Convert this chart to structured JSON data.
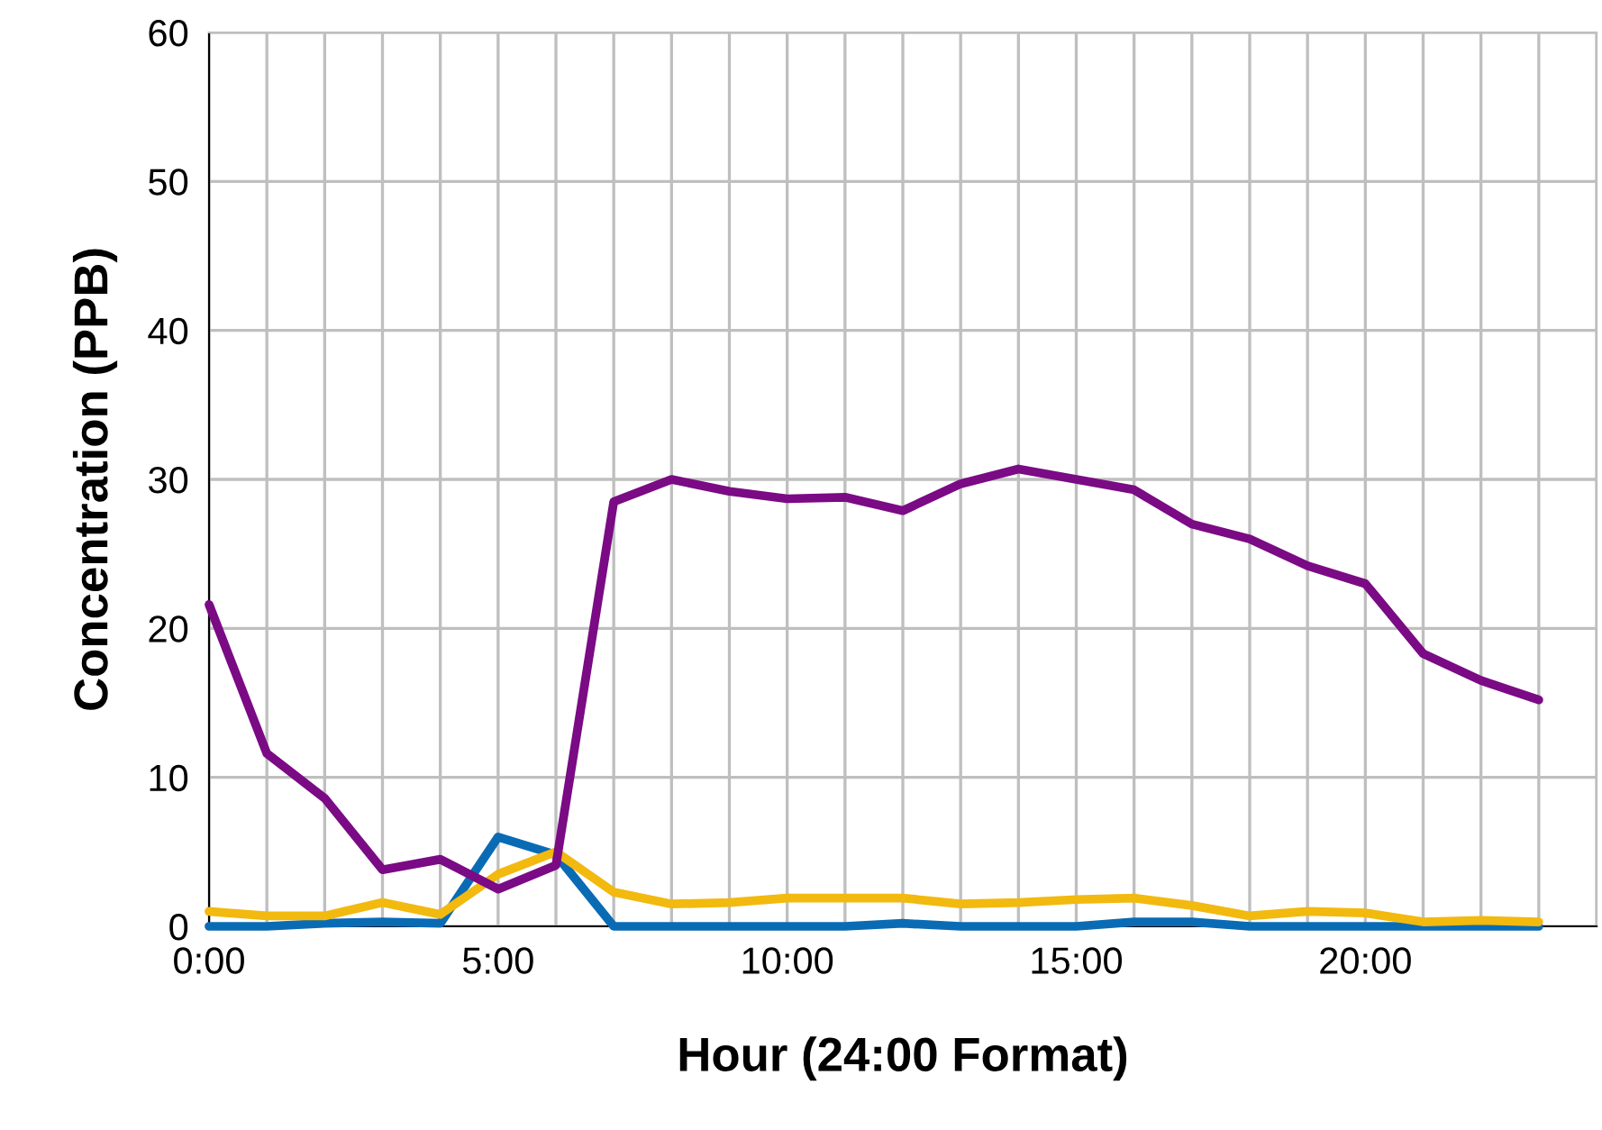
{
  "chart_data": {
    "type": "line",
    "xlabel": "Hour (24:00 Format)",
    "ylabel": "Concentration (PPB)",
    "x": [
      0,
      1,
      2,
      3,
      4,
      5,
      6,
      7,
      8,
      9,
      10,
      11,
      12,
      13,
      14,
      15,
      16,
      17,
      18,
      19,
      20,
      21,
      22,
      23
    ],
    "series": [
      {
        "color": "#0a6bb5",
        "values": [
          0,
          0,
          0.2,
          0.3,
          0.2,
          6,
          4.8,
          0,
          0,
          0,
          0,
          0,
          0.2,
          0,
          0,
          0,
          0.3,
          0.3,
          0,
          0,
          0,
          0,
          0,
          0
        ]
      },
      {
        "color": "#f2b90f",
        "values": [
          1,
          0.7,
          0.7,
          1.6,
          0.8,
          3.5,
          5,
          2.3,
          1.5,
          1.6,
          1.9,
          1.9,
          1.9,
          1.5,
          1.6,
          1.8,
          1.9,
          1.4,
          0.7,
          1,
          0.9,
          0.3,
          0.4,
          0.3
        ]
      },
      {
        "color": "#7b0a85",
        "values": [
          21.6,
          11.6,
          8.6,
          3.8,
          4.5,
          2.5,
          4.1,
          28.5,
          30,
          29.2,
          28.7,
          28.8,
          27.9,
          29.7,
          30.7,
          30,
          29.3,
          27,
          26,
          24.2,
          23,
          18.3,
          16.5,
          15.2
        ]
      }
    ],
    "xlim": [
      0,
      24
    ],
    "xticks": [
      {
        "value": 0,
        "label": "0:00"
      },
      {
        "value": 1,
        "label": null
      },
      {
        "value": 2,
        "label": null
      },
      {
        "value": 3,
        "label": null
      },
      {
        "value": 4,
        "label": null
      },
      {
        "value": 5,
        "label": "5:00"
      },
      {
        "value": 6,
        "label": null
      },
      {
        "value": 7,
        "label": null
      },
      {
        "value": 8,
        "label": null
      },
      {
        "value": 9,
        "label": null
      },
      {
        "value": 10,
        "label": "10:00"
      },
      {
        "value": 11,
        "label": null
      },
      {
        "value": 12,
        "label": null
      },
      {
        "value": 13,
        "label": null
      },
      {
        "value": 14,
        "label": null
      },
      {
        "value": 15,
        "label": "15:00"
      },
      {
        "value": 16,
        "label": null
      },
      {
        "value": 17,
        "label": null
      },
      {
        "value": 18,
        "label": null
      },
      {
        "value": 19,
        "label": null
      },
      {
        "value": 20,
        "label": "20:00"
      },
      {
        "value": 21,
        "label": null
      },
      {
        "value": 22,
        "label": null
      },
      {
        "value": 23,
        "label": null
      },
      {
        "value": 24,
        "label": null
      }
    ],
    "ylim": [
      0,
      60
    ],
    "yticks": [
      0,
      10,
      20,
      30,
      40,
      50,
      60
    ],
    "grid": true,
    "marker": "none",
    "line_style": "solid"
  }
}
